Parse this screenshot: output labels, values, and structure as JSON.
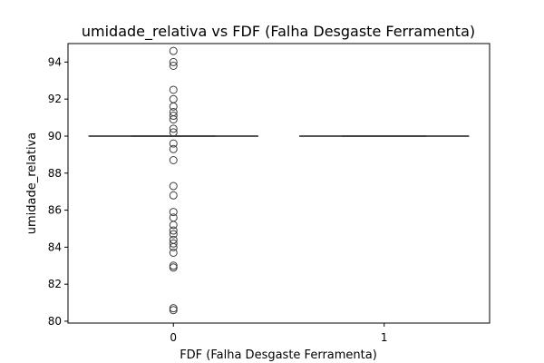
{
  "chart_data": {
    "type": "box",
    "title": "umidade_relativa vs FDF (Falha Desgaste Ferramenta)",
    "xlabel": "FDF (Falha Desgaste Ferramenta)",
    "ylabel": "umidade_relativa",
    "categories": [
      "0",
      "1"
    ],
    "ylim": [
      79.9,
      95.0
    ],
    "yticks": [
      80,
      82,
      84,
      86,
      88,
      90,
      92,
      94
    ],
    "grid": false,
    "colors": {
      "box_line": "#3d3d3d",
      "axis": "#000000"
    },
    "boxes": [
      {
        "category": "0",
        "q1": 90.0,
        "median": 90.0,
        "q3": 90.0,
        "whisker_low": 90.0,
        "whisker_high": 90.0,
        "outliers": [
          94.6,
          94.0,
          93.8,
          92.5,
          92.0,
          91.6,
          91.3,
          91.1,
          90.9,
          90.4,
          90.2,
          89.6,
          89.3,
          88.7,
          87.3,
          86.8,
          85.9,
          85.6,
          85.2,
          84.9,
          84.7,
          84.4,
          84.2,
          84.0,
          83.7,
          83.0,
          82.9,
          80.7,
          80.6
        ]
      },
      {
        "category": "1",
        "q1": 90.0,
        "median": 90.0,
        "q3": 90.0,
        "whisker_low": 90.0,
        "whisker_high": 90.0,
        "outliers": []
      }
    ]
  }
}
